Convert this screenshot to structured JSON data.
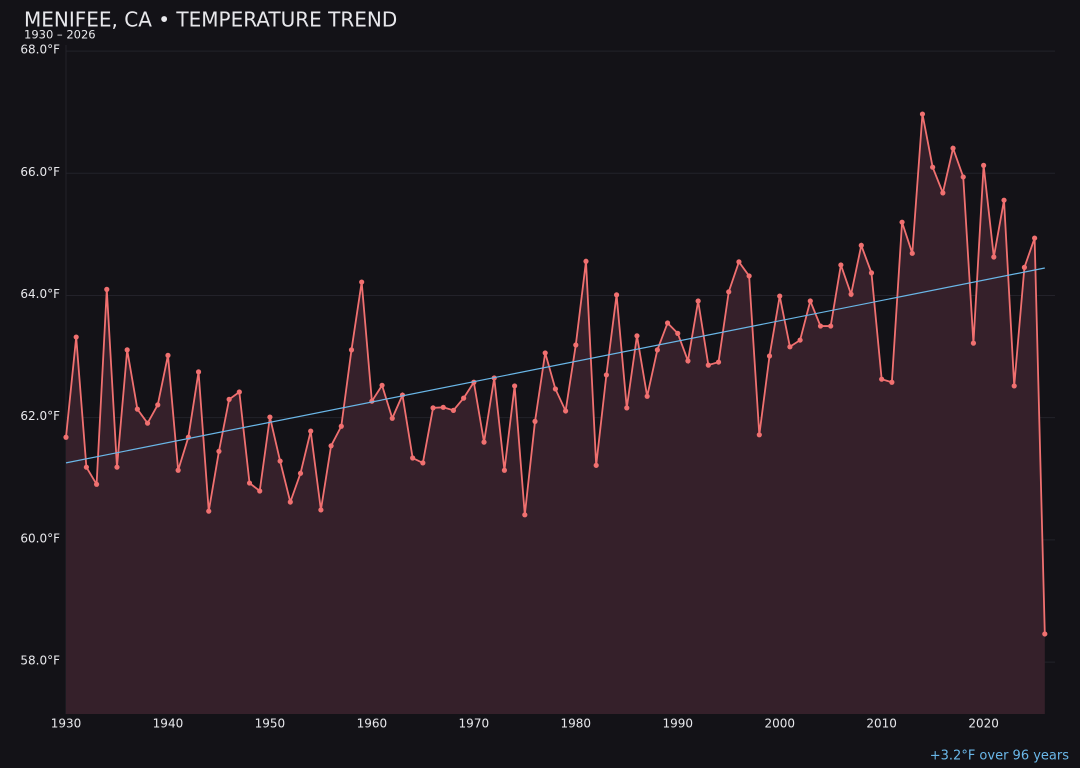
{
  "chart_data": {
    "type": "line",
    "title": "MENIFEE, CA • TEMPERATURE TREND",
    "subtitle": "1930 – 2026",
    "annotation": "+3.2°F over 96 years",
    "x": [
      1930,
      1931,
      1932,
      1933,
      1934,
      1935,
      1936,
      1937,
      1938,
      1939,
      1940,
      1941,
      1942,
      1943,
      1944,
      1945,
      1946,
      1947,
      1948,
      1949,
      1950,
      1951,
      1952,
      1953,
      1954,
      1955,
      1956,
      1957,
      1958,
      1959,
      1960,
      1961,
      1962,
      1963,
      1964,
      1965,
      1966,
      1967,
      1968,
      1969,
      1970,
      1971,
      1972,
      1973,
      1974,
      1975,
      1976,
      1977,
      1978,
      1979,
      1980,
      1981,
      1982,
      1983,
      1984,
      1985,
      1986,
      1987,
      1988,
      1989,
      1990,
      1991,
      1992,
      1993,
      1994,
      1995,
      1996,
      1997,
      1998,
      1999,
      2000,
      2001,
      2002,
      2003,
      2004,
      2005,
      2006,
      2007,
      2008,
      2009,
      2010,
      2011,
      2012,
      2013,
      2014,
      2015,
      2016,
      2017,
      2018,
      2019,
      2020,
      2021,
      2022,
      2023,
      2024,
      2025,
      2026
    ],
    "series": [
      {
        "color": "#f07070",
        "area_color": "#35202a",
        "values": [
          61.68,
          63.32,
          61.19,
          60.91,
          64.1,
          61.19,
          63.11,
          62.14,
          61.91,
          62.21,
          63.02,
          61.14,
          61.68,
          62.75,
          60.47,
          61.45,
          62.3,
          62.42,
          60.93,
          60.8,
          62.01,
          61.29,
          60.62,
          61.09,
          61.78,
          60.49,
          61.54,
          61.86,
          63.11,
          64.22,
          62.27,
          62.53,
          61.99,
          62.37,
          61.34,
          61.26,
          62.16,
          62.17,
          62.12,
          62.32,
          62.58,
          61.6,
          62.65,
          61.14,
          62.52,
          60.41,
          61.94,
          63.06,
          62.47,
          62.11,
          63.19,
          64.56,
          61.22,
          62.7,
          64.01,
          62.16,
          63.34,
          62.35,
          63.11,
          63.55,
          63.38,
          62.93,
          63.91,
          62.86,
          62.91,
          64.06,
          64.55,
          64.32,
          61.72,
          63.01,
          63.99,
          63.16,
          63.27,
          63.91,
          63.5,
          63.5,
          64.5,
          64.02,
          64.82,
          64.37,
          62.63,
          62.58,
          65.2,
          64.69,
          66.97,
          66.1,
          65.68,
          66.41,
          65.94,
          63.22,
          66.13,
          64.63,
          65.56,
          62.52,
          64.46,
          64.94,
          58.46
        ]
      }
    ],
    "trend": {
      "color": "#6ab7e8",
      "x": [
        1930,
        2026
      ],
      "values": [
        61.26,
        64.45
      ]
    },
    "xlim": [
      1930,
      2027
    ],
    "ylim": [
      57.15,
      68.1
    ],
    "xticks": [
      1930,
      1940,
      1950,
      1960,
      1970,
      1980,
      1990,
      2000,
      2010,
      2020
    ],
    "yticks": [
      {
        "value": 58,
        "label": "58.0°F"
      },
      {
        "value": 60,
        "label": "60.0°F"
      },
      {
        "value": 62,
        "label": "62.0°F"
      },
      {
        "value": 64,
        "label": "64.0°F"
      },
      {
        "value": 66,
        "label": "66.0°F"
      },
      {
        "value": 68,
        "label": "68.0°F"
      }
    ],
    "grid": true
  }
}
